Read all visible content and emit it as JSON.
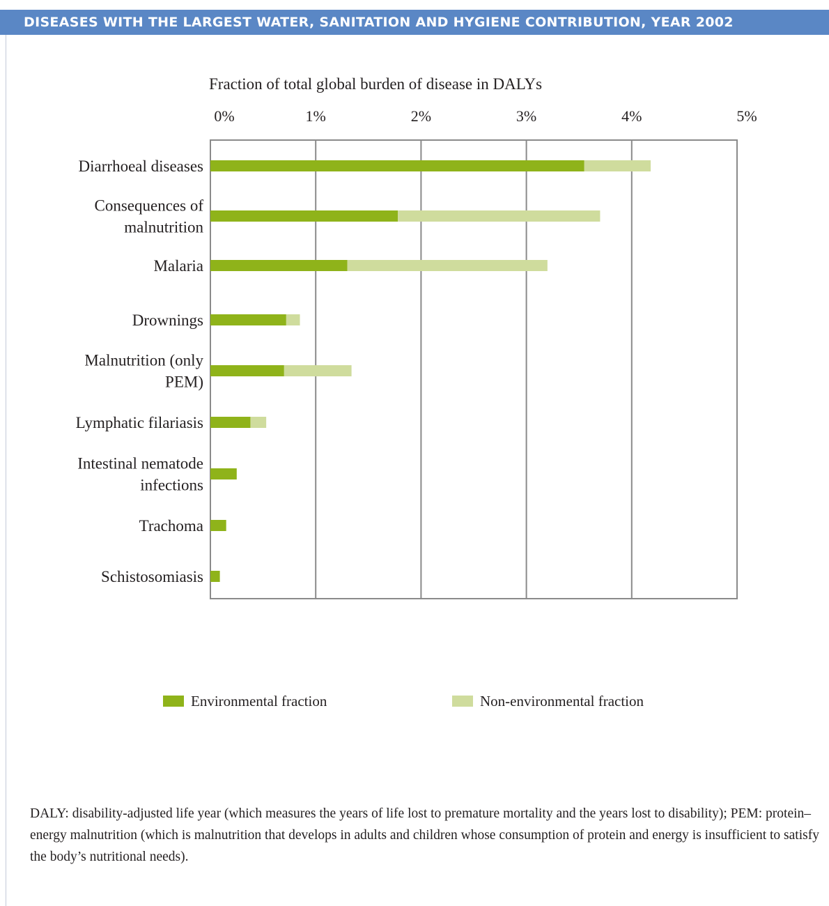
{
  "header": {
    "title": "DISEASES WITH THE LARGEST WATER, SANITATION AND HYGIENE CONTRIBUTION, YEAR 2002"
  },
  "colors": {
    "header": "#5a87c5",
    "environmental": "#8fb31a",
    "non_environmental": "#cfdc9d",
    "grid": "#8a8a8a"
  },
  "chart_data": {
    "type": "bar",
    "orientation": "horizontal",
    "stacked": true,
    "xlabel": "Fraction of total global burden of disease in DALYs",
    "xlim": [
      0,
      5
    ],
    "x_ticks": [
      "0%",
      "1%",
      "2%",
      "3%",
      "4%",
      "5%"
    ],
    "grid": true,
    "legend_position": "bottom",
    "categories": [
      "Diarrhoeal diseases",
      "Consequences of malnutrition",
      "Malaria",
      "Drownings",
      "Malnutrition (only PEM)",
      "Lymphatic filariasis",
      "Intestinal nematode infections",
      "Trachoma",
      "Schistosomiasis"
    ],
    "category_lines": [
      [
        "Diarrhoeal diseases"
      ],
      [
        "Consequences of",
        "malnutrition"
      ],
      [
        "Malaria"
      ],
      [
        "Drownings"
      ],
      [
        "Malnutrition (only",
        "PEM)"
      ],
      [
        "Lymphatic filariasis"
      ],
      [
        "Intestinal nematode",
        "infections"
      ],
      [
        "Trachoma"
      ],
      [
        "Schistosomiasis"
      ]
    ],
    "series": [
      {
        "name": "Environmental fraction",
        "values": [
          3.55,
          1.78,
          1.3,
          0.72,
          0.7,
          0.38,
          0.25,
          0.15,
          0.09
        ]
      },
      {
        "name": "Non-environmental fraction",
        "values": [
          0.63,
          1.92,
          1.9,
          0.13,
          0.64,
          0.15,
          0.0,
          0.0,
          0.0
        ]
      }
    ]
  },
  "footnote": "DALY: disability-adjusted life year (which measures the years of life lost to premature mortality and the years lost to disability); PEM: protein–energy malnutrition (which is malnutrition that develops in adults and children whose consumption of protein and energy is insufficient to satisfy the body’s nutritional needs)."
}
